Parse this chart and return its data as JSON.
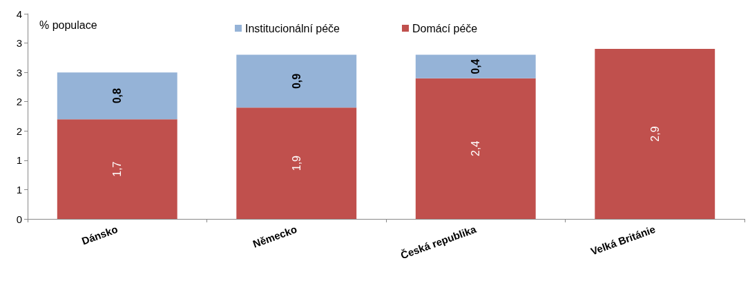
{
  "chart_data": {
    "type": "bar",
    "ylabel": "% populace",
    "stacked": true,
    "legend": "top",
    "categories": [
      "Dánsko",
      "Německo",
      "Česká republika",
      "Velká Británie"
    ],
    "series": [
      {
        "name": "Domácí péče",
        "color": "#c0504d",
        "values": [
          1.7,
          1.9,
          2.4,
          2.9
        ],
        "value_labels": [
          "1,7",
          "1,9",
          "2,4",
          "2,9"
        ]
      },
      {
        "name": "Institucionální péče",
        "color": "#95b3d7",
        "values": [
          0.8,
          0.9,
          0.4,
          null
        ],
        "value_labels": [
          "0,8",
          "0,9",
          "0,4",
          null
        ]
      }
    ],
    "ylim": [
      0,
      3.5
    ],
    "yticks": [
      0,
      {
        "value": 0.5,
        "label": "1"
      },
      1,
      {
        "value": 1.5,
        "label": "2"
      },
      2,
      {
        "value": 2.5,
        "label": "3"
      },
      3,
      {
        "value": 3.5,
        "label": "4"
      }
    ],
    "grid": false
  }
}
